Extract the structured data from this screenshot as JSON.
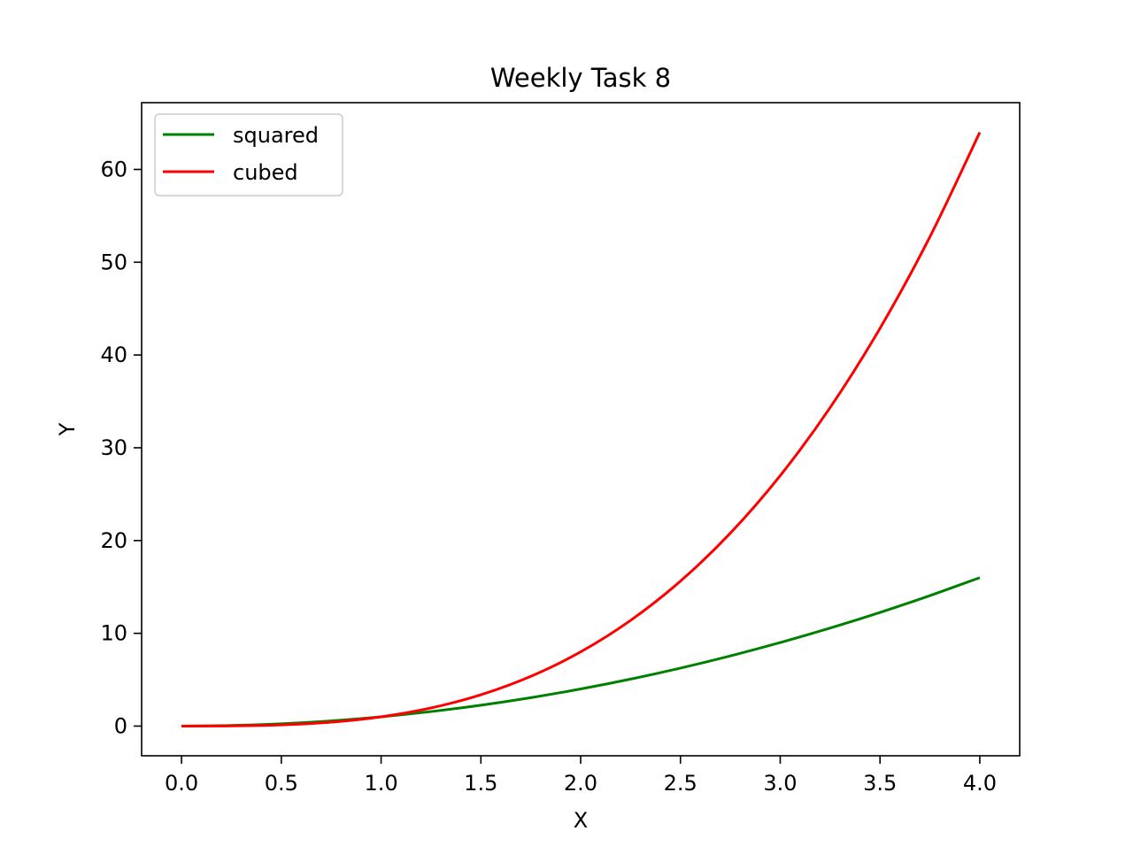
{
  "chart_data": {
    "type": "line",
    "title": "Weekly Task 8",
    "xlabel": "X",
    "ylabel": "Y",
    "xlim": [
      -0.2,
      4.2
    ],
    "ylim": [
      -3.2,
      67.2
    ],
    "xticks": [
      0.0,
      0.5,
      1.0,
      1.5,
      2.0,
      2.5,
      3.0,
      3.5,
      4.0
    ],
    "xtick_labels": [
      "0.0",
      "0.5",
      "1.0",
      "1.5",
      "2.0",
      "2.5",
      "3.0",
      "3.5",
      "4.0"
    ],
    "yticks": [
      0,
      10,
      20,
      30,
      40,
      50,
      60
    ],
    "ytick_labels": [
      "0",
      "10",
      "20",
      "30",
      "40",
      "50",
      "60"
    ],
    "grid": false,
    "legend_position": "top-left",
    "series": [
      {
        "name": "squared",
        "color": "#008000",
        "x": [
          0.0,
          0.25,
          0.5,
          0.75,
          1.0,
          1.25,
          1.5,
          1.75,
          2.0,
          2.25,
          2.5,
          2.75,
          3.0,
          3.25,
          3.5,
          3.75,
          4.0
        ],
        "y": [
          0.0,
          0.0625,
          0.25,
          0.5625,
          1.0,
          1.5625,
          2.25,
          3.0625,
          4.0,
          5.0625,
          6.25,
          7.5625,
          9.0,
          10.5625,
          12.25,
          14.0625,
          16.0
        ]
      },
      {
        "name": "cubed",
        "color": "#ff0000",
        "x": [
          0.0,
          0.25,
          0.5,
          0.75,
          1.0,
          1.25,
          1.5,
          1.75,
          2.0,
          2.25,
          2.5,
          2.75,
          3.0,
          3.25,
          3.5,
          3.75,
          4.0
        ],
        "y": [
          0.0,
          0.0156,
          0.125,
          0.4219,
          1.0,
          1.9531,
          3.375,
          5.3594,
          8.0,
          11.3906,
          15.625,
          20.7969,
          27.0,
          34.3281,
          42.875,
          52.7344,
          64.0
        ]
      }
    ]
  }
}
